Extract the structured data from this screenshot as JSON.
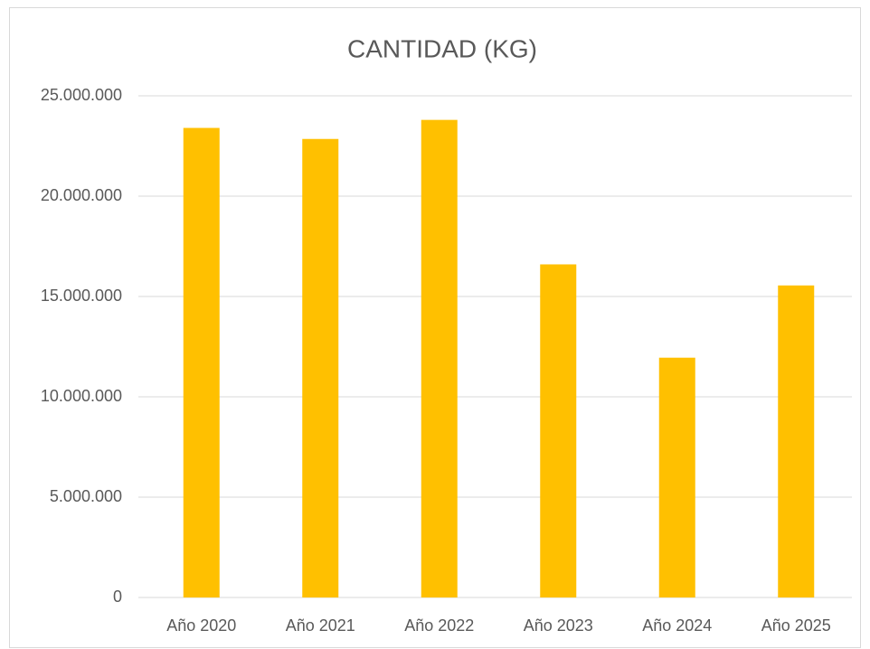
{
  "chart_data": {
    "type": "bar",
    "title": "CANTIDAD (KG)",
    "categories": [
      "Año 2020",
      "Año 2021",
      "Año 2022",
      "Año 2023",
      "Año 2024",
      "Año 2025"
    ],
    "values": [
      23400000,
      22850000,
      23800000,
      16600000,
      11950000,
      15550000
    ],
    "color": "#ffc000",
    "ylim": [
      0,
      25000000
    ],
    "yticks": [
      0,
      {
        "value": 5000000,
        "label": "5.000.000"
      },
      {
        "value": 10000000,
        "label": "10.000.000"
      },
      {
        "value": 15000000,
        "label": "15.000.000"
      },
      {
        "value": 20000000,
        "label": "20.000.000"
      },
      {
        "value": 25000000,
        "label": "25.000.000"
      }
    ],
    "grid": true
  }
}
